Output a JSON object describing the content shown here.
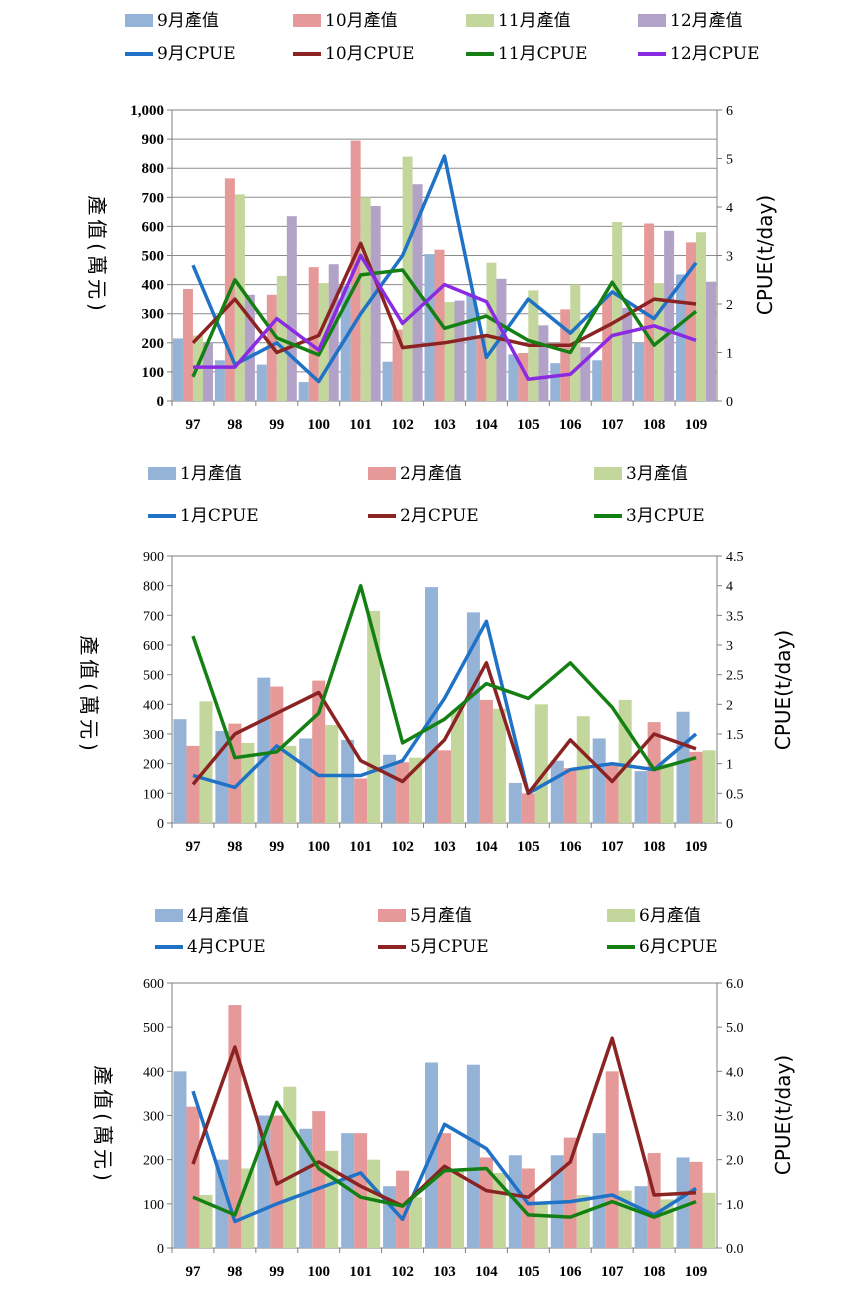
{
  "chart_data": [
    {
      "type": "bar",
      "categories": [
        "97",
        "98",
        "99",
        "100",
        "101",
        "102",
        "103",
        "104",
        "105",
        "106",
        "107",
        "108",
        "109"
      ],
      "ylabel": "產值(萬元)",
      "y2label": "CPUE(t/day)",
      "ylim": [
        0,
        1000
      ],
      "y2lim": [
        0,
        6
      ],
      "yticks": [
        "0",
        "100",
        "200",
        "300",
        "400",
        "500",
        "600",
        "700",
        "800",
        "900",
        "1,000"
      ],
      "y2ticks": [
        "0",
        "1",
        "2",
        "3",
        "4",
        "5",
        "6"
      ],
      "grid": true,
      "legend_position": "top",
      "bar_series": [
        {
          "name": "9月產值",
          "color": "#95b3d7",
          "values": [
            215,
            140,
            125,
            65,
            395,
            135,
            505,
            365,
            160,
            130,
            140,
            200,
            435
          ]
        },
        {
          "name": "10月產值",
          "color": "#e59a99",
          "values": [
            385,
            765,
            365,
            460,
            895,
            245,
            520,
            225,
            165,
            315,
            365,
            610,
            545
          ]
        },
        {
          "name": "11月產值",
          "color": "#c3d69b",
          "values": [
            225,
            710,
            430,
            405,
            700,
            840,
            340,
            475,
            380,
            400,
            615,
            405,
            580
          ]
        },
        {
          "name": "12月產值",
          "color": "#b3a2c7",
          "values": [
            200,
            365,
            635,
            470,
            670,
            745,
            345,
            420,
            260,
            185,
            320,
            585,
            410
          ]
        }
      ],
      "line_series": [
        {
          "name": "9月CPUE",
          "color": "#1f72c5",
          "values": [
            2.8,
            0.75,
            1.2,
            0.4,
            1.8,
            3.0,
            5.05,
            0.9,
            2.1,
            1.4,
            2.25,
            1.7,
            2.85
          ]
        },
        {
          "name": "10月CPUE",
          "color": "#8b2323",
          "values": [
            1.2,
            2.1,
            1.0,
            1.35,
            3.25,
            1.1,
            1.2,
            1.35,
            1.15,
            1.15,
            1.6,
            2.1,
            2.0
          ]
        },
        {
          "name": "11月CPUE",
          "color": "#148014",
          "values": [
            0.5,
            2.5,
            1.3,
            0.95,
            2.6,
            2.7,
            1.5,
            1.75,
            1.25,
            1.0,
            2.45,
            1.15,
            1.85
          ]
        },
        {
          "name": "12月CPUE",
          "color": "#8a2be2",
          "values": [
            0.7,
            0.7,
            1.7,
            1.05,
            3.0,
            1.6,
            2.4,
            2.05,
            0.45,
            0.55,
            1.35,
            1.55,
            1.25
          ]
        }
      ]
    },
    {
      "type": "bar",
      "categories": [
        "97",
        "98",
        "99",
        "100",
        "101",
        "102",
        "103",
        "104",
        "105",
        "106",
        "107",
        "108",
        "109"
      ],
      "ylabel": "產值(萬元)",
      "y2label": "CPUE(t/day)",
      "ylim": [
        0,
        900
      ],
      "y2lim": [
        0,
        4.5
      ],
      "yticks": [
        "0",
        "100",
        "200",
        "300",
        "400",
        "500",
        "600",
        "700",
        "800",
        "900"
      ],
      "y2ticks": [
        "0",
        "0.5",
        "1",
        "1.5",
        "2",
        "2.5",
        "3",
        "3.5",
        "4",
        "4.5"
      ],
      "grid": false,
      "legend_position": "top",
      "bar_series": [
        {
          "name": "1月產值",
          "color": "#95b3d7",
          "values": [
            350,
            310,
            490,
            285,
            280,
            230,
            795,
            710,
            135,
            210,
            285,
            175,
            375
          ]
        },
        {
          "name": "2月產值",
          "color": "#e59a99",
          "values": [
            260,
            335,
            460,
            480,
            150,
            205,
            245,
            415,
            100,
            185,
            200,
            340,
            240
          ]
        },
        {
          "name": "3月產值",
          "color": "#c3d69b",
          "values": [
            410,
            270,
            260,
            330,
            715,
            220,
            380,
            385,
            400,
            360,
            415,
            200,
            245
          ]
        }
      ],
      "line_series": [
        {
          "name": "1月CPUE",
          "color": "#1f72c5",
          "values": [
            0.8,
            0.6,
            1.3,
            0.8,
            0.8,
            1.05,
            2.1,
            3.4,
            0.5,
            0.9,
            1.0,
            0.9,
            1.5
          ]
        },
        {
          "name": "2月CPUE",
          "color": "#8b2323",
          "values": [
            0.65,
            1.5,
            1.85,
            2.2,
            1.05,
            0.7,
            1.4,
            2.7,
            0.5,
            1.4,
            0.7,
            1.5,
            1.25
          ]
        },
        {
          "name": "3月CPUE",
          "color": "#148014",
          "values": [
            3.15,
            1.1,
            1.2,
            1.85,
            4.0,
            1.35,
            1.75,
            2.35,
            2.1,
            2.7,
            1.95,
            0.9,
            1.1
          ]
        }
      ]
    },
    {
      "type": "bar",
      "categories": [
        "97",
        "98",
        "99",
        "100",
        "101",
        "102",
        "103",
        "104",
        "105",
        "106",
        "107",
        "108",
        "109"
      ],
      "ylabel": "產值(萬元)",
      "y2label": "CPUE(t/day)",
      "ylim": [
        0,
        600
      ],
      "y2lim": [
        0,
        6
      ],
      "yticks": [
        "0",
        "100",
        "200",
        "300",
        "400",
        "500",
        "600"
      ],
      "y2ticks": [
        "0.0",
        "1.0",
        "2.0",
        "3.0",
        "4.0",
        "5.0",
        "6.0"
      ],
      "grid": false,
      "legend_position": "top",
      "bar_series": [
        {
          "name": "4月產值",
          "color": "#95b3d7",
          "values": [
            400,
            200,
            300,
            270,
            260,
            140,
            420,
            415,
            210,
            210,
            260,
            140,
            205
          ]
        },
        {
          "name": "5月產值",
          "color": "#e59a99",
          "values": [
            320,
            550,
            300,
            310,
            260,
            175,
            260,
            205,
            180,
            250,
            400,
            215,
            195
          ]
        },
        {
          "name": "6月產值",
          "color": "#c3d69b",
          "values": [
            120,
            180,
            365,
            220,
            200,
            115,
            175,
            170,
            105,
            120,
            130,
            110,
            125
          ]
        }
      ],
      "line_series": [
        {
          "name": "4月CPUE",
          "color": "#1f72c5",
          "values": [
            3.55,
            0.6,
            1.0,
            1.35,
            1.7,
            0.65,
            2.8,
            2.25,
            1.0,
            1.05,
            1.2,
            0.75,
            1.35
          ]
        },
        {
          "name": "5月CPUE",
          "color": "#8b2323",
          "values": [
            1.9,
            4.55,
            1.45,
            1.95,
            1.4,
            0.95,
            1.85,
            1.3,
            1.15,
            1.95,
            4.75,
            1.2,
            1.25
          ]
        },
        {
          "name": "6月CPUE",
          "color": "#148014",
          "values": [
            1.15,
            0.75,
            3.3,
            1.8,
            1.15,
            0.95,
            1.75,
            1.8,
            0.75,
            0.7,
            1.05,
            0.7,
            1.05
          ]
        }
      ]
    }
  ]
}
